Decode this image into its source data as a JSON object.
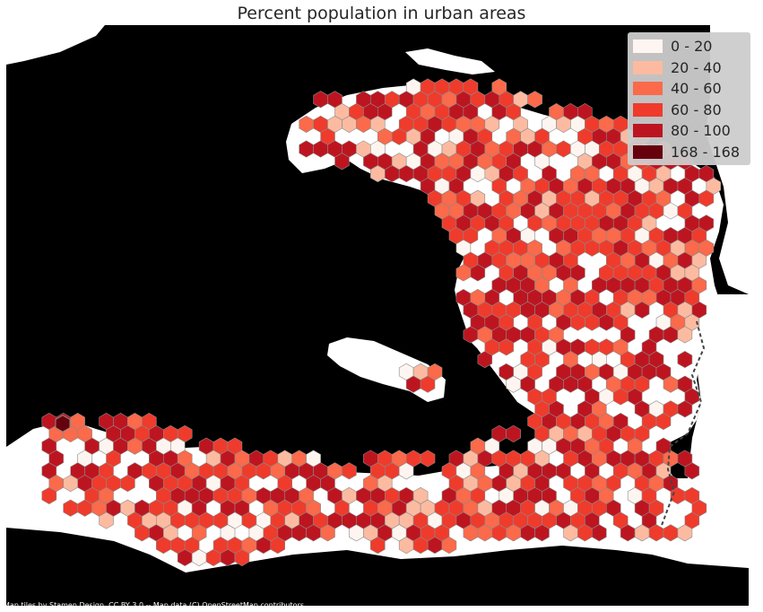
{
  "title": "Percent population in urban areas",
  "attribution": "Map tiles by Stamen Design, CC BY 3.0 -- Map data (C) OpenStreetMap contributors",
  "legend": [
    {
      "label": "0 - 20",
      "color": "#fff5f0"
    },
    {
      "label": "20 - 40",
      "color": "#fcbba1"
    },
    {
      "label": "40 - 60",
      "color": "#fb6a4a"
    },
    {
      "label": "60 - 80",
      "color": "#ef3b2c"
    },
    {
      "label": "80 - 100",
      "color": "#bd1520"
    },
    {
      "label": "168 - 168",
      "color": "#67000d"
    }
  ],
  "colors": {
    "sea": "#000000",
    "land": "#ffffff",
    "border": "#444444"
  }
}
